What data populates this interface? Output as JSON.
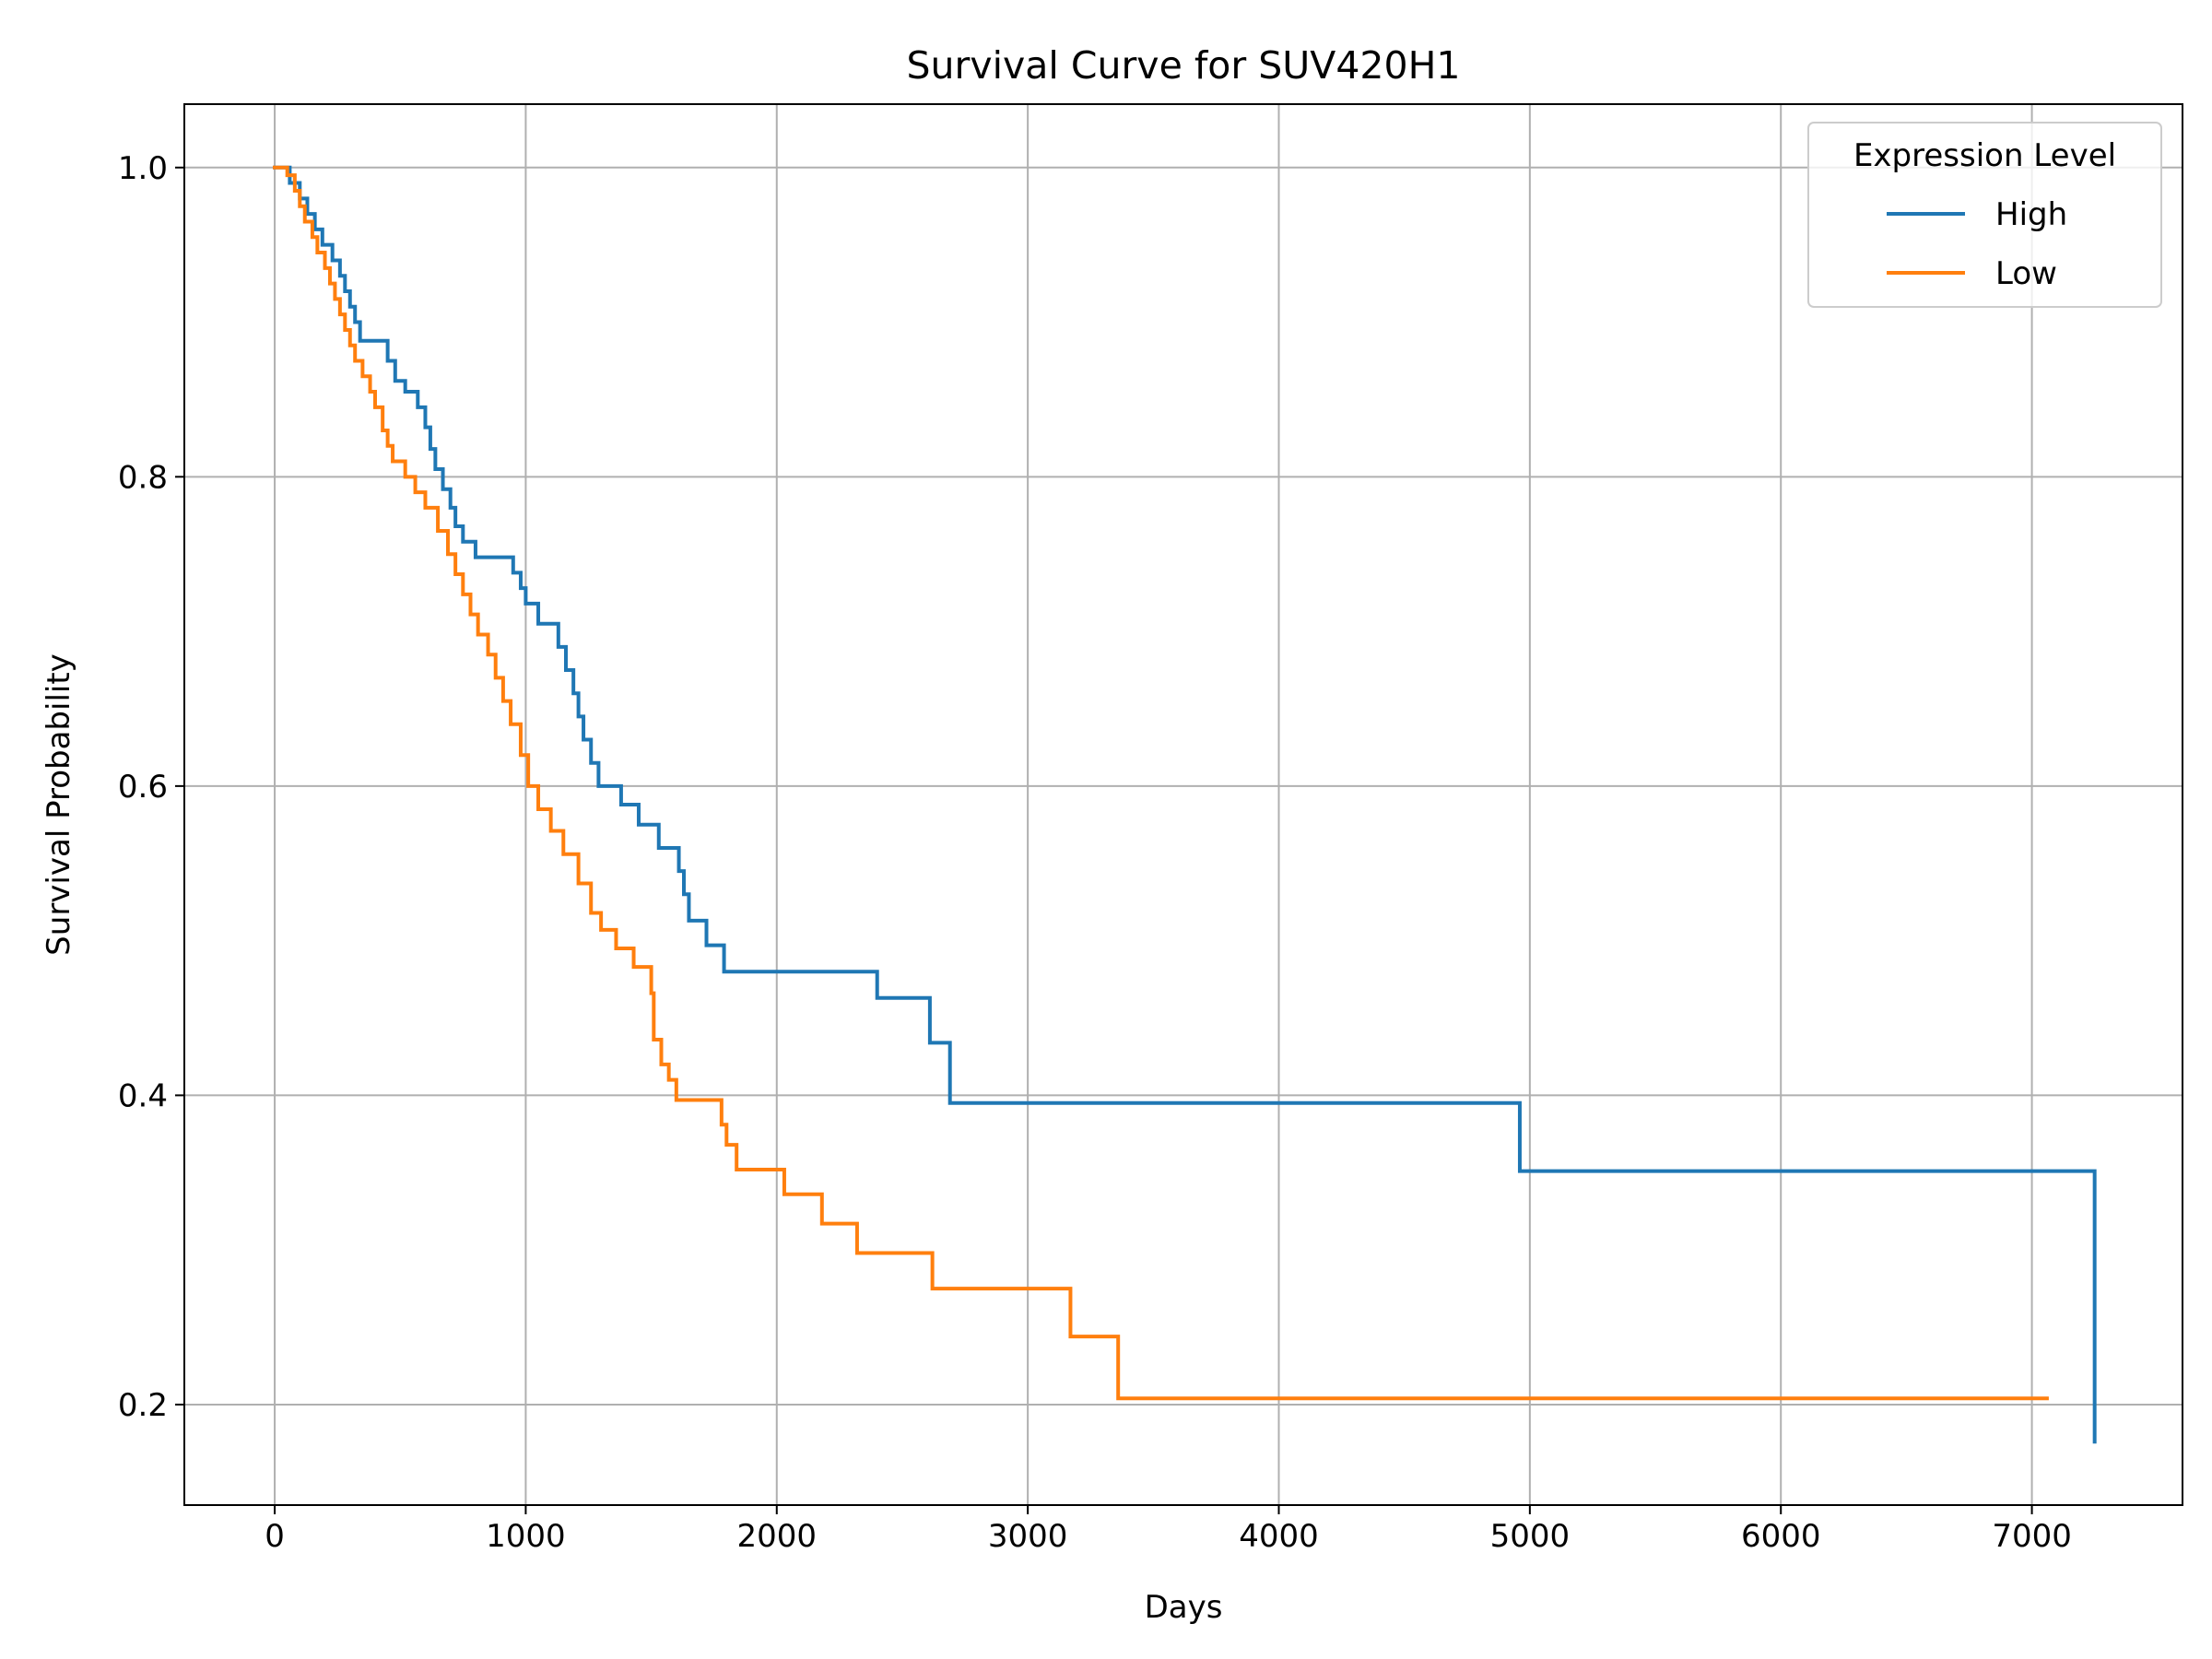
{
  "chart_data": {
    "type": "line",
    "title": "Survival Curve for SUV420H1",
    "xlabel": "Days",
    "ylabel": "Survival Probability",
    "xlim": [
      -360,
      7600
    ],
    "ylim": [
      0.135,
      1.041
    ],
    "xticks": [
      0,
      1000,
      2000,
      3000,
      4000,
      5000,
      6000,
      7000
    ],
    "yticks": [
      0.2,
      0.4,
      0.6,
      0.8,
      1.0
    ],
    "xtick_labels": [
      "0",
      "1000",
      "2000",
      "3000",
      "4000",
      "5000",
      "6000",
      "7000"
    ],
    "ytick_labels": [
      "0.2",
      "0.4",
      "0.6",
      "0.8",
      "1.0"
    ],
    "grid": true,
    "legend": {
      "title": "Expression Level",
      "position": "top-right"
    },
    "series": [
      {
        "name": "High",
        "color": "#1f77b4",
        "x": [
          0,
          60,
          100,
          130,
          160,
          190,
          210,
          230,
          260,
          280,
          300,
          320,
          340,
          370,
          450,
          480,
          520,
          570,
          600,
          620,
          640,
          670,
          700,
          720,
          750,
          800,
          950,
          980,
          1000,
          1050,
          1130,
          1160,
          1190,
          1210,
          1230,
          1260,
          1290,
          1380,
          1450,
          1530,
          1610,
          1630,
          1650,
          1720,
          1790,
          2400,
          2610,
          2690,
          4960,
          7250
        ],
        "y": [
          1.0,
          0.99,
          0.98,
          0.97,
          0.96,
          0.95,
          0.95,
          0.94,
          0.93,
          0.92,
          0.91,
          0.9,
          0.888,
          0.888,
          0.875,
          0.862,
          0.855,
          0.845,
          0.832,
          0.818,
          0.805,
          0.792,
          0.78,
          0.768,
          0.758,
          0.748,
          0.738,
          0.728,
          0.718,
          0.705,
          0.69,
          0.675,
          0.66,
          0.645,
          0.63,
          0.615,
          0.6,
          0.588,
          0.575,
          0.56,
          0.545,
          0.53,
          0.513,
          0.497,
          0.48,
          0.463,
          0.434,
          0.395,
          0.351,
          0.176
        ]
      },
      {
        "name": "Low",
        "color": "#ff7f0e",
        "x": [
          0,
          50,
          80,
          100,
          120,
          150,
          170,
          200,
          220,
          240,
          260,
          280,
          300,
          320,
          350,
          380,
          400,
          430,
          450,
          470,
          520,
          560,
          600,
          650,
          690,
          720,
          750,
          780,
          810,
          850,
          880,
          910,
          940,
          980,
          1010,
          1050,
          1100,
          1150,
          1210,
          1260,
          1300,
          1360,
          1430,
          1500,
          1510,
          1540,
          1570,
          1600,
          1780,
          1800,
          1840,
          2030,
          2180,
          2320,
          2620,
          3170,
          3360,
          7060
        ],
        "y": [
          1.0,
          0.995,
          0.985,
          0.975,
          0.965,
          0.955,
          0.945,
          0.935,
          0.925,
          0.915,
          0.905,
          0.895,
          0.885,
          0.875,
          0.865,
          0.855,
          0.845,
          0.83,
          0.82,
          0.81,
          0.8,
          0.79,
          0.78,
          0.765,
          0.75,
          0.737,
          0.724,
          0.711,
          0.698,
          0.685,
          0.67,
          0.655,
          0.64,
          0.62,
          0.6,
          0.585,
          0.571,
          0.556,
          0.537,
          0.518,
          0.507,
          0.495,
          0.483,
          0.466,
          0.436,
          0.42,
          0.41,
          0.397,
          0.381,
          0.368,
          0.352,
          0.336,
          0.317,
          0.298,
          0.275,
          0.244,
          0.204,
          0.204
        ]
      }
    ]
  }
}
